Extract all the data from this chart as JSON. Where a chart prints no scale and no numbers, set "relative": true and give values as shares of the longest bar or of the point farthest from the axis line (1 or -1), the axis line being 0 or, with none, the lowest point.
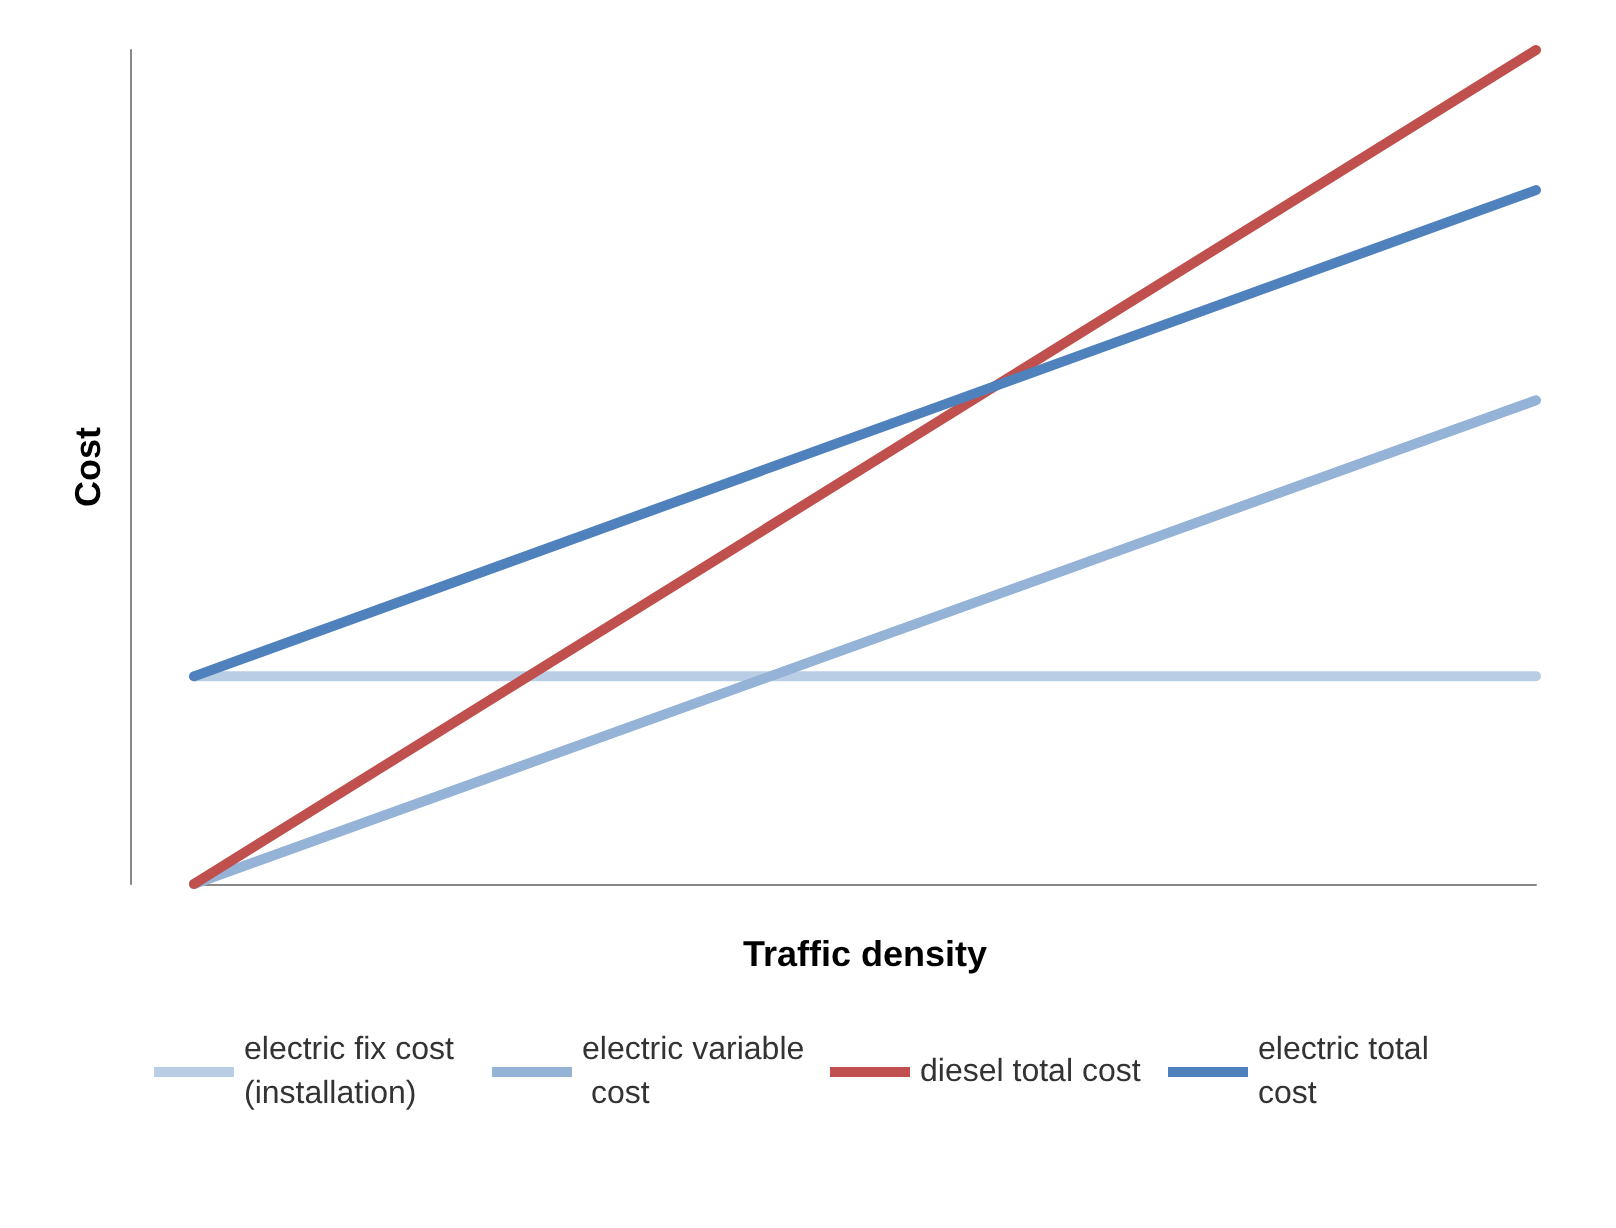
{
  "chart_data": {
    "type": "line",
    "relative": true,
    "xlabel": "Traffic density",
    "ylabel": "Cost",
    "categories": [
      null,
      null
    ],
    "series": [
      {
        "name": "electric fix cost (installation)",
        "color": "#b9cde5",
        "values": [
          0.249,
          0.249
        ]
      },
      {
        "name": "electric variable cost",
        "color": "#95b3d7",
        "values": [
          0,
          0.58
        ]
      },
      {
        "name": "diesel total cost",
        "color": "#c0504d",
        "values": [
          0,
          1
        ]
      },
      {
        "name": "electric total cost",
        "color": "#4f81bd",
        "values": [
          0.249,
          0.832
        ]
      }
    ],
    "legend": "bottom",
    "grid": false,
    "marker": "none",
    "line_style": "solid"
  }
}
